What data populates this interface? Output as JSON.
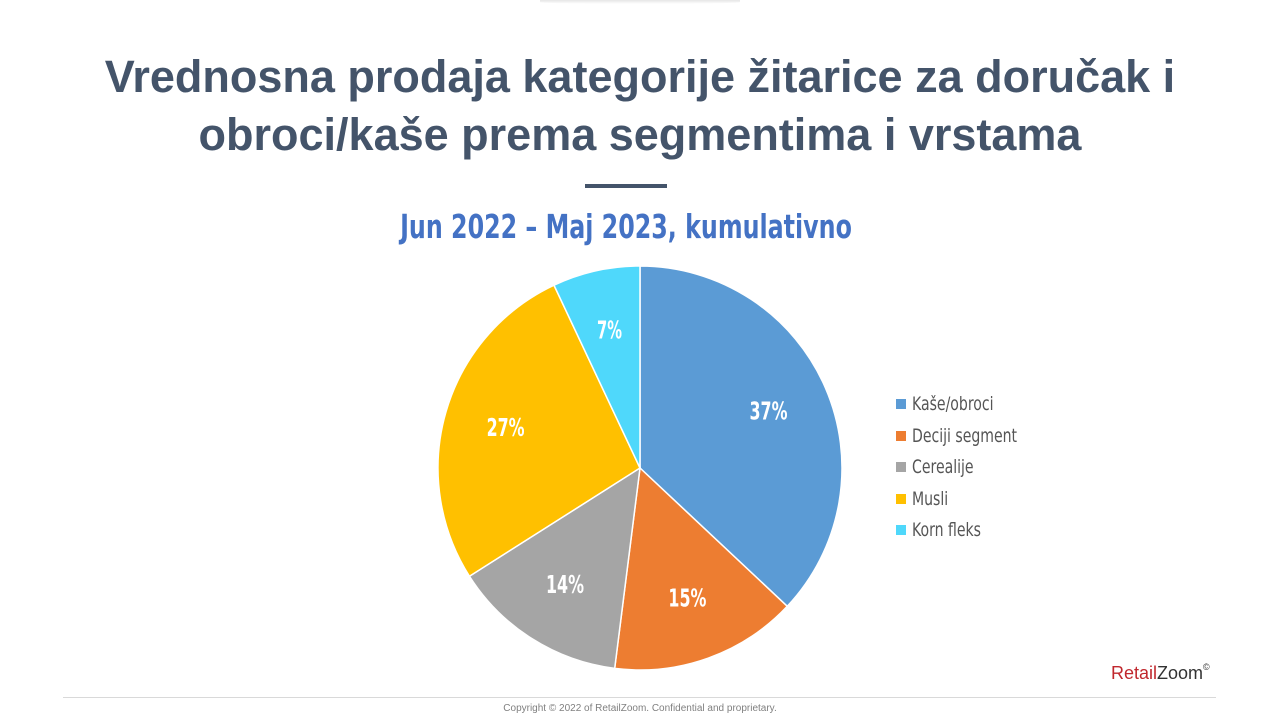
{
  "slide": {
    "title": "Vrednosna prodaja kategorije žitarice za doručak i obroci/kaše prema segmentima i vrstama",
    "subtitle": "Jun 2022 – Maj 2023, kumulativno",
    "brand_retail": "Retail",
    "brand_zoom": "Zoom",
    "brand_mark": "©",
    "footer": "Copyright © 2022 of RetailZoom. Confidential and proprietary."
  },
  "chart_data": {
    "type": "pie",
    "title": "Jun 2022 – Maj 2023, kumulativno",
    "categories": [
      "Kaše/obroci",
      "Deciji segment",
      "Cerealije",
      "Musli",
      "Korn fleks"
    ],
    "values": [
      37,
      15,
      14,
      27,
      7
    ],
    "labels": [
      "37%",
      "15%",
      "14%",
      "27%",
      "7%"
    ],
    "colors": [
      "#5b9bd5",
      "#ed7d31",
      "#a5a5a5",
      "#ffc000",
      "#4fd8fb"
    ],
    "start_angle": "12 o'clock",
    "direction": "clockwise",
    "legend_position": "right"
  }
}
